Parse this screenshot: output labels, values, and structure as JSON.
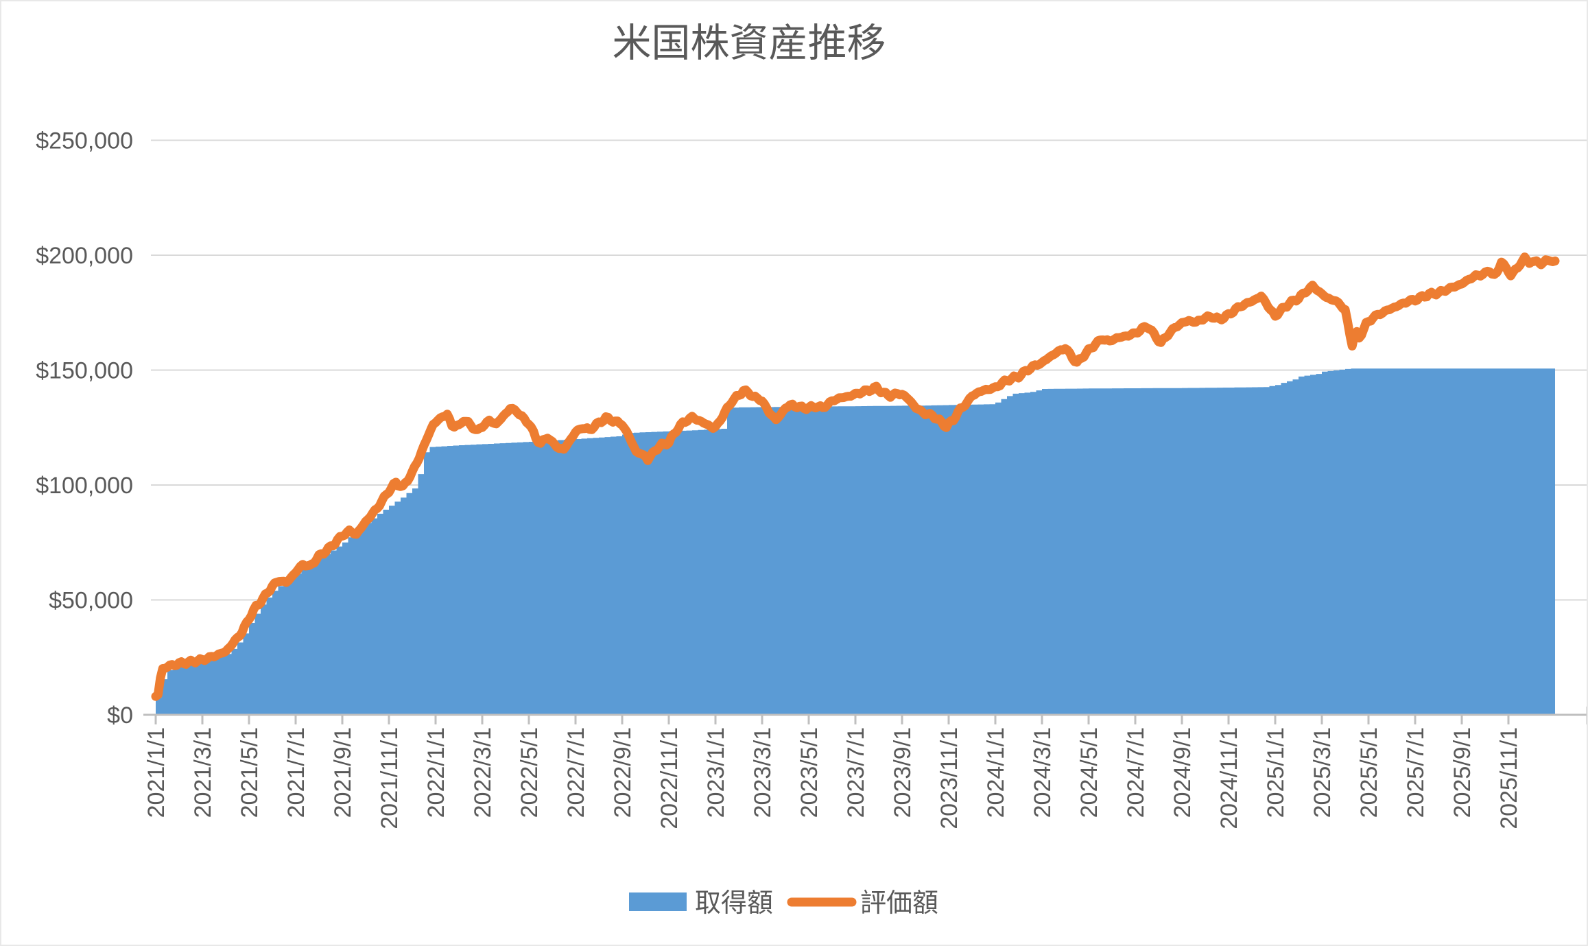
{
  "title": "米国株資産推移",
  "legend": {
    "acquisition_label": "取得額",
    "valuation_label": "評価額"
  },
  "colors": {
    "acquisition": "#5B9BD5",
    "valuation": "#ED7D31",
    "text": "#595959",
    "gridline": "#D9D9D9",
    "axis": "#BFBFBF",
    "background": "#FFFFFF"
  },
  "chart_data": {
    "type": "area",
    "title": "米国株資産推移",
    "grid": true,
    "legend_position": "bottom",
    "y_axis": {
      "min": 0,
      "max": 250000,
      "tick_step": 50000,
      "ticks": [
        "$0",
        "$50,000",
        "$100,000",
        "$150,000",
        "$200,000",
        "$250,000"
      ]
    },
    "x_axis": {
      "start": "2021/1/1",
      "end": "2025/12/31",
      "tick_interval_months": 2,
      "tick_labels": [
        "2021/1/1",
        "2021/3/1",
        "2021/5/1",
        "2021/7/1",
        "2021/9/1",
        "2021/11/1",
        "2022/1/1",
        "2022/3/1",
        "2022/5/1",
        "2022/7/1",
        "2022/9/1",
        "2022/11/1",
        "2023/1/1",
        "2023/3/1",
        "2023/5/1",
        "2023/7/1",
        "2023/9/1",
        "2023/11/1",
        "2024/1/1",
        "2024/3/1",
        "2024/5/1",
        "2024/7/1",
        "2024/9/1",
        "2024/11/1",
        "2025/1/1",
        "2025/3/1",
        "2025/5/1",
        "2025/7/1",
        "2025/9/1",
        "2025/11/1"
      ],
      "x_unit": "months_since_2021-01-01"
    },
    "series": [
      {
        "name": "取得額",
        "type": "area",
        "color": "#5B9BD5",
        "interpolation": "step",
        "points": [
          [
            0,
            7500
          ],
          [
            0.15,
            9500
          ],
          [
            0.25,
            15500
          ],
          [
            0.4,
            19000
          ],
          [
            0.7,
            20300
          ],
          [
            1,
            21000
          ],
          [
            1.5,
            22000
          ],
          [
            2,
            23000
          ],
          [
            2.5,
            24500
          ],
          [
            3,
            26500
          ],
          [
            3.4,
            30000
          ],
          [
            3.7,
            34500
          ],
          [
            4,
            40000
          ],
          [
            4.5,
            48000
          ],
          [
            5,
            54000
          ],
          [
            5.5,
            58000
          ],
          [
            6,
            61500
          ],
          [
            6.5,
            65000
          ],
          [
            7,
            68500
          ],
          [
            7.5,
            71500
          ],
          [
            8,
            75000
          ],
          [
            8.5,
            79500
          ],
          [
            9,
            83500
          ],
          [
            9.5,
            87500
          ],
          [
            10,
            91000
          ],
          [
            10.5,
            94500
          ],
          [
            11,
            98500
          ],
          [
            11.2,
            103000
          ],
          [
            11.4,
            110000
          ],
          [
            11.55,
            116400
          ],
          [
            12,
            116700
          ],
          [
            13,
            117300
          ],
          [
            14,
            117800
          ],
          [
            15,
            118300
          ],
          [
            16,
            118800
          ],
          [
            17,
            119400
          ],
          [
            18,
            120000
          ],
          [
            19,
            120700
          ],
          [
            19.9,
            121300
          ],
          [
            20.1,
            122600
          ],
          [
            21,
            123000
          ],
          [
            22,
            123400
          ],
          [
            23,
            123800
          ],
          [
            24.3,
            124500
          ],
          [
            24.5,
            133600
          ],
          [
            25,
            133800
          ],
          [
            26,
            133900
          ],
          [
            27,
            134000
          ],
          [
            28,
            134100
          ],
          [
            29,
            134200
          ],
          [
            30,
            134300
          ],
          [
            31,
            134400
          ],
          [
            32,
            134500
          ],
          [
            33,
            134600
          ],
          [
            34,
            134800
          ],
          [
            35,
            135000
          ],
          [
            35.9,
            135200
          ],
          [
            36.1,
            136600
          ],
          [
            36.4,
            138200
          ],
          [
            36.7,
            139700
          ],
          [
            37.4,
            140300
          ],
          [
            38,
            141800
          ],
          [
            39,
            141900
          ],
          [
            40,
            142000
          ],
          [
            42,
            142100
          ],
          [
            44,
            142200
          ],
          [
            46,
            142400
          ],
          [
            47.5,
            142600
          ],
          [
            48,
            143500
          ],
          [
            48.2,
            144300
          ],
          [
            48.7,
            145700
          ],
          [
            49,
            147200
          ],
          [
            49.8,
            148400
          ],
          [
            50,
            149300
          ],
          [
            51.2,
            150700
          ],
          [
            60,
            150700
          ]
        ]
      },
      {
        "name": "評価額",
        "type": "line",
        "color": "#ED7D31",
        "interpolation": "linear",
        "points": [
          [
            0,
            8000
          ],
          [
            0.13,
            9000
          ],
          [
            0.2,
            16000
          ],
          [
            0.3,
            20000
          ],
          [
            0.5,
            21000
          ],
          [
            1,
            22300
          ],
          [
            1.5,
            23000
          ],
          [
            2,
            23900
          ],
          [
            2.5,
            25500
          ],
          [
            3,
            27500
          ],
          [
            3.3,
            31000
          ],
          [
            3.7,
            36000
          ],
          [
            4,
            42000
          ],
          [
            4.3,
            47000
          ],
          [
            4.6,
            50500
          ],
          [
            5,
            56000
          ],
          [
            5.3,
            58500
          ],
          [
            5.6,
            57500
          ],
          [
            6,
            62000
          ],
          [
            6.3,
            65500
          ],
          [
            6.6,
            64500
          ],
          [
            7,
            69000
          ],
          [
            7.5,
            73000
          ],
          [
            8,
            78000
          ],
          [
            8.3,
            80000
          ],
          [
            8.6,
            78500
          ],
          [
            9,
            84000
          ],
          [
            9.5,
            90000
          ],
          [
            10,
            97500
          ],
          [
            10.3,
            101000
          ],
          [
            10.6,
            99000
          ],
          [
            11,
            105500
          ],
          [
            11.3,
            112000
          ],
          [
            11.6,
            119500
          ],
          [
            11.9,
            126500
          ],
          [
            12.1,
            128000
          ],
          [
            12.3,
            130000
          ],
          [
            12.5,
            130500
          ],
          [
            12.7,
            126000
          ],
          [
            13,
            125500
          ],
          [
            13.2,
            128500
          ],
          [
            13.5,
            126000
          ],
          [
            13.8,
            123500
          ],
          [
            14,
            125500
          ],
          [
            14.3,
            128000
          ],
          [
            14.6,
            126500
          ],
          [
            15,
            131000
          ],
          [
            15.2,
            133400
          ],
          [
            15.5,
            132000
          ],
          [
            15.8,
            128500
          ],
          [
            16,
            127000
          ],
          [
            16.3,
            120500
          ],
          [
            16.5,
            118000
          ],
          [
            16.8,
            121000
          ],
          [
            17,
            118500
          ],
          [
            17.3,
            116000
          ],
          [
            17.5,
            115500
          ],
          [
            17.8,
            120000
          ],
          [
            18,
            123000
          ],
          [
            18.3,
            125000
          ],
          [
            18.6,
            124000
          ],
          [
            19,
            127000
          ],
          [
            19.3,
            129200
          ],
          [
            19.6,
            128000
          ],
          [
            20,
            126500
          ],
          [
            20.3,
            121000
          ],
          [
            20.6,
            114500
          ],
          [
            21,
            112500
          ],
          [
            21.1,
            111000
          ],
          [
            21.4,
            115000
          ],
          [
            21.7,
            117500
          ],
          [
            22,
            118500
          ],
          [
            22.3,
            123500
          ],
          [
            22.6,
            127000
          ],
          [
            23,
            129500
          ],
          [
            23.2,
            128500
          ],
          [
            23.5,
            127000
          ],
          [
            23.8,
            125500
          ],
          [
            23.95,
            124500
          ],
          [
            24.1,
            126500
          ],
          [
            24.4,
            131500
          ],
          [
            24.7,
            136500
          ],
          [
            25,
            139000
          ],
          [
            25.2,
            141200
          ],
          [
            25.5,
            139500
          ],
          [
            25.8,
            137500
          ],
          [
            26,
            136800
          ],
          [
            26.3,
            131500
          ],
          [
            26.6,
            128500
          ],
          [
            26.8,
            130500
          ],
          [
            27,
            133800
          ],
          [
            27.3,
            134800
          ],
          [
            27.6,
            133800
          ],
          [
            28,
            133500
          ],
          [
            28.3,
            134300
          ],
          [
            28.6,
            133600
          ],
          [
            29,
            136500
          ],
          [
            29.3,
            137800
          ],
          [
            29.6,
            138300
          ],
          [
            30,
            139500
          ],
          [
            30.3,
            140500
          ],
          [
            30.6,
            141300
          ],
          [
            30.9,
            142400
          ],
          [
            31.2,
            140000
          ],
          [
            31.5,
            138800
          ],
          [
            31.8,
            139800
          ],
          [
            32,
            139500
          ],
          [
            32.3,
            137200
          ],
          [
            32.6,
            133500
          ],
          [
            33,
            131000
          ],
          [
            33.3,
            130300
          ],
          [
            33.6,
            128000
          ],
          [
            33.9,
            125400
          ],
          [
            34.2,
            128500
          ],
          [
            34.5,
            133000
          ],
          [
            34.8,
            136000
          ],
          [
            35,
            138800
          ],
          [
            35.3,
            140500
          ],
          [
            35.6,
            141500
          ],
          [
            36,
            142300
          ],
          [
            36.3,
            144500
          ],
          [
            36.6,
            146000
          ],
          [
            37,
            147300
          ],
          [
            37.3,
            149500
          ],
          [
            37.6,
            151500
          ],
          [
            38,
            153200
          ],
          [
            38.3,
            155500
          ],
          [
            38.6,
            157500
          ],
          [
            39,
            159700
          ],
          [
            39.3,
            155500
          ],
          [
            39.5,
            153100
          ],
          [
            39.8,
            156500
          ],
          [
            40,
            158500
          ],
          [
            40.3,
            161500
          ],
          [
            40.6,
            163600
          ],
          [
            40.9,
            162500
          ],
          [
            41.2,
            164000
          ],
          [
            41.5,
            164500
          ],
          [
            42,
            166000
          ],
          [
            42.3,
            168000
          ],
          [
            42.55,
            169200
          ],
          [
            42.8,
            165500
          ],
          [
            43.1,
            161800
          ],
          [
            43.4,
            165500
          ],
          [
            43.7,
            168500
          ],
          [
            44,
            170500
          ],
          [
            44.3,
            171500
          ],
          [
            44.6,
            170800
          ],
          [
            45,
            172800
          ],
          [
            45.3,
            173300
          ],
          [
            45.6,
            172000
          ],
          [
            46,
            174000
          ],
          [
            46.3,
            176500
          ],
          [
            46.6,
            178200
          ],
          [
            47,
            180000
          ],
          [
            47.4,
            182100
          ],
          [
            47.6,
            179500
          ],
          [
            47.8,
            176000
          ],
          [
            48,
            173600
          ],
          [
            48.3,
            176500
          ],
          [
            48.6,
            179000
          ],
          [
            49,
            181300
          ],
          [
            49.3,
            184000
          ],
          [
            49.6,
            186600
          ],
          [
            49.9,
            184000
          ],
          [
            50.2,
            181500
          ],
          [
            50.5,
            180500
          ],
          [
            50.8,
            178500
          ],
          [
            51,
            176000
          ],
          [
            51.15,
            168000
          ],
          [
            51.3,
            161200
          ],
          [
            51.45,
            167000
          ],
          [
            51.6,
            164000
          ],
          [
            51.9,
            170000
          ],
          [
            52.2,
            173000
          ],
          [
            52.5,
            174500
          ],
          [
            52.8,
            176000
          ],
          [
            53.1,
            177300
          ],
          [
            53.4,
            178600
          ],
          [
            53.7,
            180000
          ],
          [
            54,
            180600
          ],
          [
            54.3,
            181800
          ],
          [
            54.6,
            183000
          ],
          [
            55,
            183600
          ],
          [
            55.3,
            184800
          ],
          [
            55.6,
            186000
          ],
          [
            56,
            187500
          ],
          [
            56.3,
            189500
          ],
          [
            56.6,
            191000
          ],
          [
            57,
            192000
          ],
          [
            57.2,
            193400
          ],
          [
            57.45,
            190400
          ],
          [
            57.7,
            197600
          ],
          [
            57.9,
            194000
          ],
          [
            58.1,
            191600
          ],
          [
            58.4,
            194500
          ],
          [
            58.7,
            199000
          ],
          [
            58.9,
            196500
          ],
          [
            59.2,
            197800
          ],
          [
            59.4,
            195500
          ],
          [
            59.6,
            198500
          ],
          [
            59.8,
            196800
          ],
          [
            60,
            197500
          ]
        ]
      }
    ]
  }
}
